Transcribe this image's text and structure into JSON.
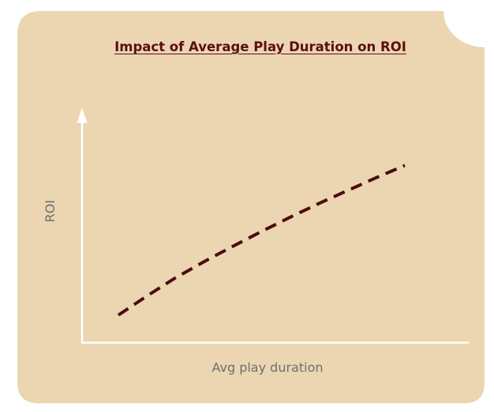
{
  "chart_data": {
    "type": "line",
    "title": "Impact of Average Play Duration on ROI",
    "xlabel": "Avg play duration",
    "ylabel": "ROI",
    "series": [
      {
        "x": [
          0.0,
          0.1,
          0.2,
          0.3,
          0.4,
          0.5,
          0.6,
          0.7,
          0.8,
          0.9,
          1.0
        ],
        "values": [
          0.0,
          0.115,
          0.225,
          0.322,
          0.414,
          0.503,
          0.589,
          0.671,
          0.749,
          0.826,
          0.9
        ]
      }
    ],
    "xlim": [
      0,
      1
    ],
    "ylim": [
      0,
      1
    ],
    "grid": false,
    "line_style": "dashed",
    "colors": {
      "card_background": "#ebd6b1",
      "line": "#4a0c0d",
      "axes": "#ffffff",
      "title": "#5a0f10",
      "axis_label": "#6e6e6e"
    }
  }
}
